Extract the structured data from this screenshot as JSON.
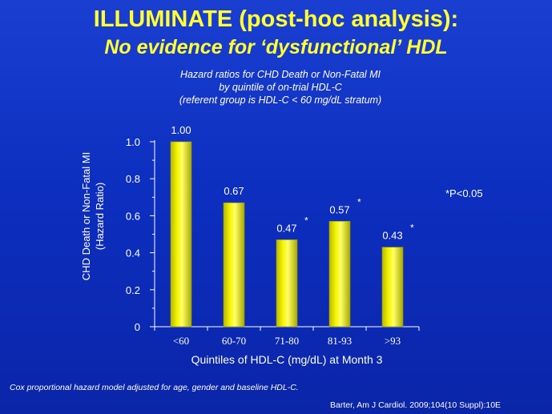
{
  "header": {
    "title": "ILLUMINATE (post-hoc analysis):",
    "subtitle": "No evidence for ‘dysfunctional’ HDL"
  },
  "caption": {
    "lines": [
      "Hazard ratios for CHD Death or Non-Fatal MI",
      "by quintile of on-trial HDL-C",
      "(referent group is HDL-C < 60 mg/dL stratum)"
    ]
  },
  "chart_data": {
    "type": "bar",
    "categories": [
      "<60",
      "60-70",
      "71-80",
      "81-93",
      ">93"
    ],
    "values": [
      1.0,
      0.67,
      0.47,
      0.57,
      0.43
    ],
    "value_labels": [
      "1.00",
      "0.67",
      "0.47",
      "0.57",
      "0.43"
    ],
    "significant": [
      false,
      false,
      true,
      true,
      true
    ],
    "significance_marker": "*",
    "xlabel": "Quintiles of HDL-C (mg/dL)  at Month 3",
    "ylabel_lines": [
      "CHD  Death or Non-Fatal MI",
      "(Hazard  Ratio)"
    ],
    "ylim": [
      0,
      1.0
    ],
    "yticks": [
      0,
      0.2,
      0.4,
      0.6,
      0.8,
      1.0
    ],
    "ytick_labels": [
      "0",
      "0.2",
      "0.4",
      "0.6",
      "0.8",
      "1.0"
    ],
    "bar_color": "#e8e800",
    "grid": false,
    "legend": "none"
  },
  "annotations": {
    "p_note": "*P<0.05",
    "footnote": "Cox proportional hazard model adjusted for age, gender and baseline HDL-C.",
    "citation": "Barter, Am J Cardiol. 2009;104(10 Suppl):10E"
  }
}
